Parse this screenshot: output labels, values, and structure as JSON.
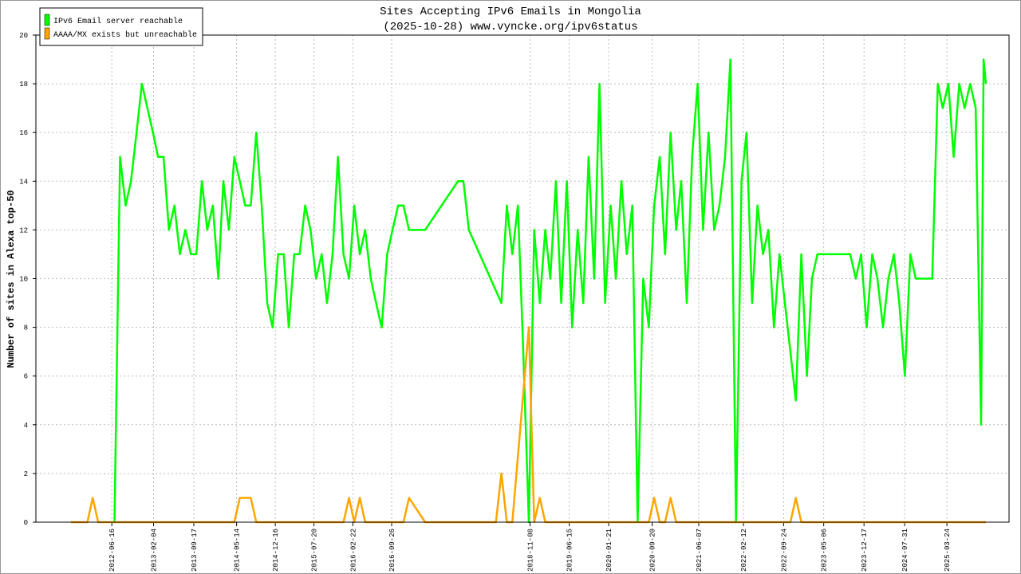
{
  "chart_data": {
    "type": "line",
    "title": "Sites Accepting IPv6 Emails in Mongolia",
    "subtitle": "(2025-10-28) www.vyncke.org/ipv6status",
    "y_label": "Number of sites in Alexa top-50",
    "ylim": [
      0,
      20
    ],
    "yticks": [
      0,
      2,
      4,
      6,
      8,
      10,
      12,
      14,
      16,
      18,
      20
    ],
    "xlim": [
      "2011-04-19",
      "2026-03-06"
    ],
    "xticks": [
      "2012-06-16",
      "2013-02-04",
      "2013-09-17",
      "2014-05-14",
      "2014-12-16",
      "2015-07-20",
      "2016-02-22",
      "2016-09-26",
      "2018-11-08",
      "2019-06-15",
      "2020-01-21",
      "2020-09-20",
      "2021-06-07",
      "2022-02-12",
      "2022-09-24",
      "2023-05-06",
      "2023-12-17",
      "2024-07-31",
      "2025-03-24"
    ],
    "grid": true,
    "legend": "upper left",
    "series": [
      {
        "name": "IPv6 Email server reachable",
        "color": "#00ff00",
        "x": [
          "2012-07-01",
          "2012-08-01",
          "2012-09-01",
          "2012-10-01",
          "2012-11-01",
          "2012-12-01",
          "2013-01-01",
          "2013-02-01",
          "2013-03-01",
          "2013-04-01",
          "2013-05-01",
          "2013-06-01",
          "2013-07-01",
          "2013-08-01",
          "2013-09-01",
          "2013-10-01",
          "2013-11-01",
          "2013-12-01",
          "2014-01-01",
          "2014-02-01",
          "2014-03-01",
          "2014-04-01",
          "2014-05-01",
          "2014-06-01",
          "2014-07-01",
          "2014-08-01",
          "2014-09-01",
          "2014-10-01",
          "2014-11-01",
          "2014-12-01",
          "2015-01-01",
          "2015-02-01",
          "2015-03-01",
          "2015-04-01",
          "2015-05-01",
          "2015-06-01",
          "2015-07-01",
          "2015-08-01",
          "2015-09-01",
          "2015-10-01",
          "2015-11-01",
          "2015-12-01",
          "2016-01-01",
          "2016-02-01",
          "2016-03-01",
          "2016-04-01",
          "2016-05-01",
          "2016-06-01",
          "2016-07-01",
          "2016-08-01",
          "2016-09-01",
          "2016-10-01",
          "2016-11-01",
          "2016-12-01",
          "2017-01-01",
          "2017-04-01",
          "2017-10-01",
          "2017-11-01",
          "2017-12-01",
          "2018-06-01",
          "2018-07-01",
          "2018-08-01",
          "2018-09-01",
          "2018-10-01",
          "2018-11-01",
          "2018-12-01",
          "2019-01-01",
          "2019-02-01",
          "2019-03-01",
          "2019-04-01",
          "2019-05-01",
          "2019-06-01",
          "2019-07-01",
          "2019-08-01",
          "2019-09-01",
          "2019-10-01",
          "2019-11-01",
          "2019-12-01",
          "2020-01-01",
          "2020-02-01",
          "2020-03-01",
          "2020-04-01",
          "2020-05-01",
          "2020-06-01",
          "2020-07-01",
          "2020-08-01",
          "2020-09-01",
          "2020-10-01",
          "2020-11-01",
          "2020-12-01",
          "2021-01-01",
          "2021-02-01",
          "2021-03-01",
          "2021-04-01",
          "2021-05-01",
          "2021-06-01",
          "2021-07-01",
          "2021-08-01",
          "2021-09-01",
          "2021-10-01",
          "2021-11-01",
          "2021-12-01",
          "2022-01-01",
          "2022-02-01",
          "2022-03-01",
          "2022-04-01",
          "2022-05-01",
          "2022-06-01",
          "2022-07-01",
          "2022-08-01",
          "2022-09-01",
          "2022-10-01",
          "2022-11-01",
          "2022-12-01",
          "2023-01-01",
          "2023-02-01",
          "2023-03-01",
          "2023-04-01",
          "2023-05-01",
          "2023-06-01",
          "2023-07-01",
          "2023-08-01",
          "2023-09-01",
          "2023-10-01",
          "2023-11-01",
          "2023-12-01",
          "2024-01-01",
          "2024-02-01",
          "2024-03-01",
          "2024-04-01",
          "2024-05-01",
          "2024-06-01",
          "2024-07-01",
          "2024-08-01",
          "2024-09-01",
          "2024-10-01",
          "2024-11-01",
          "2024-12-01",
          "2025-01-01",
          "2025-02-01",
          "2025-03-01",
          "2025-04-01",
          "2025-05-01",
          "2025-06-01",
          "2025-07-01",
          "2025-08-01",
          "2025-09-01",
          "2025-10-01",
          "2025-10-15",
          "2025-10-28"
        ],
        "values": [
          0,
          15,
          13,
          14,
          16,
          18,
          17,
          16,
          15,
          15,
          12,
          13,
          11,
          12,
          11,
          11,
          14,
          12,
          13,
          10,
          14,
          12,
          15,
          14,
          13,
          13,
          16,
          13,
          9,
          8,
          11,
          11,
          8,
          11,
          11,
          13,
          12,
          10,
          11,
          9,
          11,
          15,
          11,
          10,
          13,
          11,
          12,
          10,
          9,
          8,
          11,
          12,
          13,
          13,
          12,
          12,
          14,
          14,
          12,
          9,
          13,
          11,
          13,
          7,
          0,
          12,
          9,
          12,
          10,
          14,
          9,
          14,
          8,
          12,
          9,
          15,
          10,
          18,
          9,
          13,
          10,
          14,
          11,
          13,
          0,
          10,
          8,
          13,
          15,
          11,
          16,
          12,
          14,
          9,
          15,
          18,
          12,
          16,
          12,
          13,
          15,
          19,
          0,
          14,
          16,
          9,
          13,
          11,
          12,
          8,
          11,
          9,
          7,
          5,
          11,
          6,
          10,
          11,
          11,
          11,
          11,
          11,
          11,
          11,
          10,
          11,
          8,
          11,
          10,
          8,
          10,
          11,
          9,
          6,
          11,
          10,
          10,
          10,
          10,
          18,
          17,
          18,
          15,
          18,
          17,
          18,
          17,
          4,
          19,
          18
        ]
      },
      {
        "name": "AAAA/MX exists but unreachable",
        "color": "#ffa500",
        "x": [
          "2011-11-01",
          "2012-02-01",
          "2012-03-01",
          "2012-04-01",
          "2014-05-01",
          "2014-06-01",
          "2014-08-01",
          "2014-09-01",
          "2016-01-01",
          "2016-02-01",
          "2016-03-01",
          "2016-04-01",
          "2016-05-01",
          "2016-12-01",
          "2017-01-01",
          "2017-04-01",
          "2018-05-01",
          "2018-06-01",
          "2018-07-01",
          "2018-08-01",
          "2018-11-01",
          "2018-12-01",
          "2019-01-01",
          "2019-02-01",
          "2020-09-01",
          "2020-10-01",
          "2020-11-01",
          "2020-12-01",
          "2021-01-01",
          "2021-02-01",
          "2022-11-01",
          "2022-12-01",
          "2023-01-01",
          "2025-10-28"
        ],
        "values": [
          0,
          0,
          1,
          0,
          0,
          1,
          1,
          0,
          0,
          1,
          0,
          1,
          0,
          0,
          1,
          0,
          0,
          2,
          0,
          0,
          8,
          0,
          1,
          0,
          0,
          1,
          0,
          0,
          1,
          0,
          0,
          1,
          0,
          0
        ]
      }
    ]
  }
}
